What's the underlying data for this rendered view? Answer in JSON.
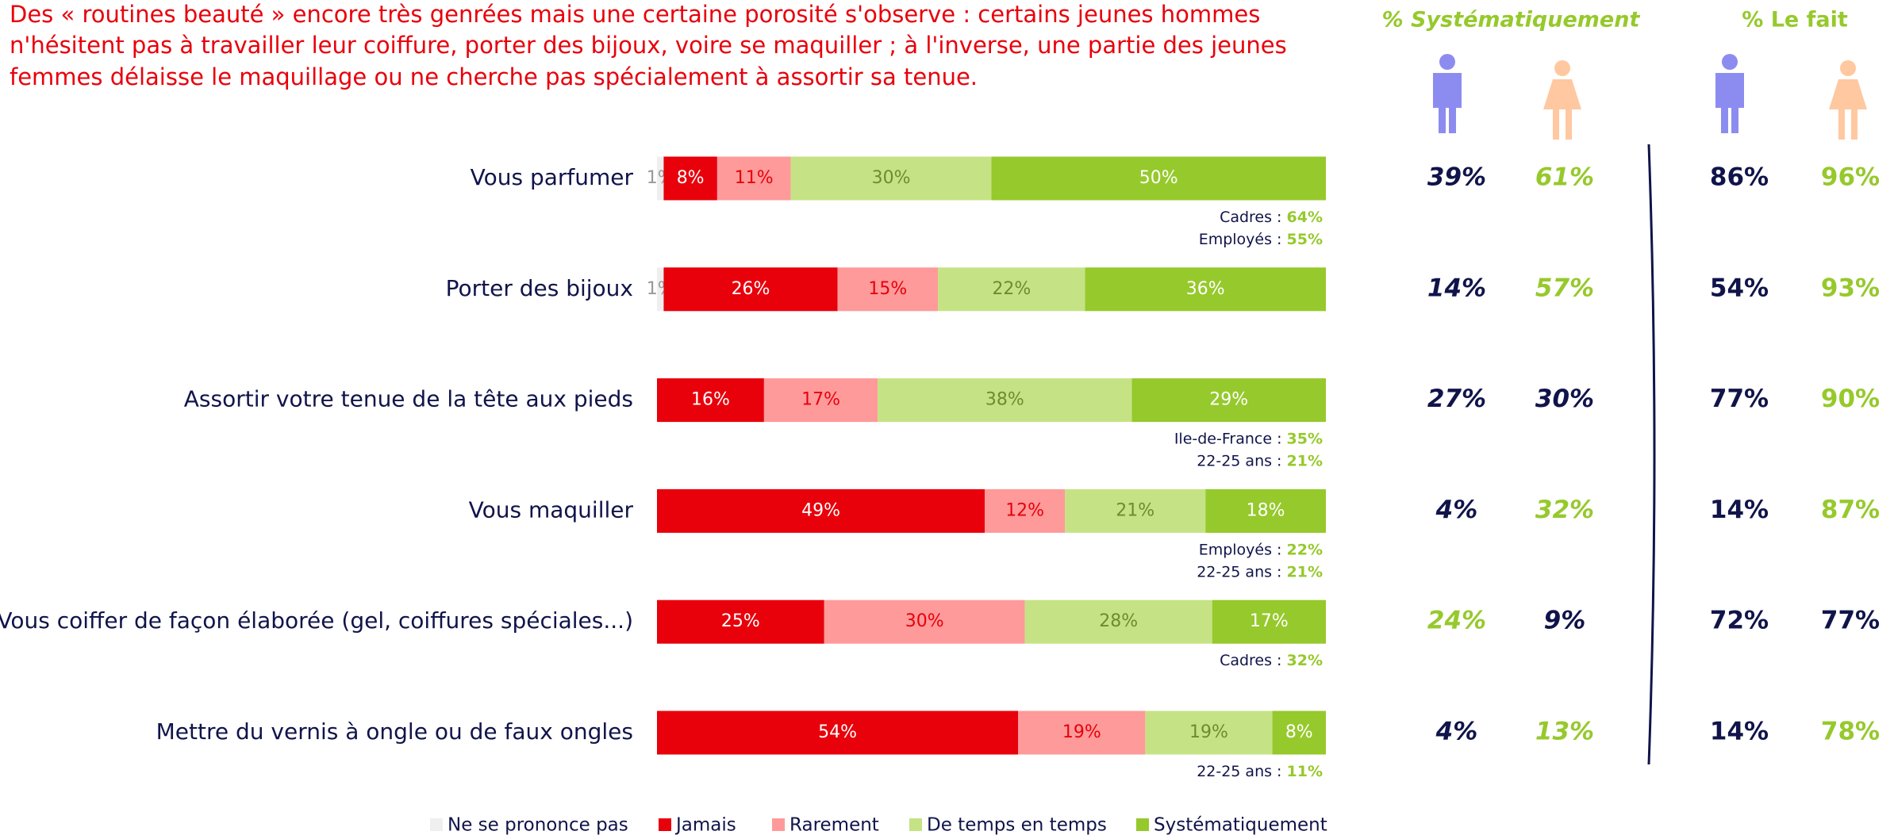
{
  "chart_data": {
    "type": "bar",
    "orientation": "horizontal",
    "stacked": true,
    "title_lines": [
      "Des « routines beauté » encore très genrées mais une certaine porosité s'observe : certains jeunes hommes",
      "n'hésitent pas à travailler leur coiffure, porter des bijoux, voire se maquiller ; à l'inverse, une partie des jeunes",
      "femmes délaisse le maquillage ou ne cherche pas spécialement à assortir sa tenue."
    ],
    "categories": [
      "Vous parfumer",
      "Porter des bijoux",
      "Assortir votre tenue de la tête aux pieds",
      "Vous maquiller",
      "Vous coiffer de façon élaborée (gel, coiffures spéciales...)",
      "Mettre du vernis à ongle ou de faux ongles"
    ],
    "series": [
      {
        "name": "Ne se prononce pas",
        "color": "#efefef",
        "label_color": "#999999",
        "values": [
          1,
          1,
          null,
          null,
          null,
          null
        ],
        "value_labels": [
          "1%",
          "1%",
          null,
          null,
          null,
          null
        ]
      },
      {
        "name": "Jamais",
        "color": "#e8000b",
        "label_color": "#ffffff",
        "values": [
          8,
          26,
          16,
          49,
          25,
          54
        ],
        "value_labels": [
          "8%",
          "26%",
          "16%",
          "49%",
          "25%",
          "54%"
        ]
      },
      {
        "name": "Rarement",
        "color": "#fe9a9a",
        "label_color": "#e8000b",
        "values": [
          11,
          15,
          17,
          12,
          30,
          19
        ],
        "value_labels": [
          "11%",
          "15%",
          "17%",
          "12%",
          "30%",
          "19%"
        ]
      },
      {
        "name": "De temps en temps",
        "color": "#c5e384",
        "label_color": "#6e8c2c",
        "values": [
          30,
          22,
          38,
          21,
          28,
          19
        ],
        "value_labels": [
          "30%",
          "22%",
          "38%",
          "21%",
          "28%",
          "19%"
        ]
      },
      {
        "name": "Systématiquement",
        "color": "#96c92c",
        "label_color": "#ffffff",
        "values": [
          50,
          36,
          29,
          18,
          17,
          8
        ],
        "value_labels": [
          "50%",
          "36%",
          "29%",
          "18%",
          "17%",
          "8%"
        ]
      }
    ],
    "notes": [
      [
        {
          "label": "Cadres :",
          "value": "64%"
        },
        {
          "label": "Employés :",
          "value": "55%"
        }
      ],
      [],
      [
        {
          "label": "Ile-de-France :",
          "value": "35%"
        },
        {
          "label": "22-25 ans :",
          "value": "21%"
        }
      ],
      [
        {
          "label": "Employés :",
          "value": "22%"
        },
        {
          "label": "22-25 ans :",
          "value": "21%"
        }
      ],
      [
        {
          "label": "Cadres :",
          "value": "32%"
        }
      ],
      [
        {
          "label": "22-25 ans :",
          "value": "11%"
        }
      ]
    ],
    "side_tables": [
      {
        "title": "% Systématiquement",
        "italic": true,
        "men": [
          {
            "value": 39,
            "label": "39%",
            "color": "#10144a"
          },
          {
            "value": 14,
            "label": "14%",
            "color": "#10144a"
          },
          {
            "value": 27,
            "label": "27%",
            "color": "#10144a"
          },
          {
            "value": 4,
            "label": "4%",
            "color": "#10144a"
          },
          {
            "value": 24,
            "label": "24%",
            "color": "#96c92c"
          },
          {
            "value": 4,
            "label": "4%",
            "color": "#10144a"
          }
        ],
        "women": [
          {
            "value": 61,
            "label": "61%",
            "color": "#96c92c"
          },
          {
            "value": 57,
            "label": "57%",
            "color": "#96c92c"
          },
          {
            "value": 30,
            "label": "30%",
            "color": "#10144a"
          },
          {
            "value": 32,
            "label": "32%",
            "color": "#96c92c"
          },
          {
            "value": 9,
            "label": "9%",
            "color": "#10144a"
          },
          {
            "value": 13,
            "label": "13%",
            "color": "#96c92c"
          }
        ]
      },
      {
        "title": "% Le fait",
        "italic": false,
        "men": [
          {
            "value": 86,
            "label": "86%",
            "color": "#10144a"
          },
          {
            "value": 54,
            "label": "54%",
            "color": "#10144a"
          },
          {
            "value": 77,
            "label": "77%",
            "color": "#10144a"
          },
          {
            "value": 14,
            "label": "14%",
            "color": "#10144a"
          },
          {
            "value": 72,
            "label": "72%",
            "color": "#10144a"
          },
          {
            "value": 14,
            "label": "14%",
            "color": "#10144a"
          }
        ],
        "women": [
          {
            "value": 96,
            "label": "96%",
            "color": "#96c92c"
          },
          {
            "value": 93,
            "label": "93%",
            "color": "#96c92c"
          },
          {
            "value": 90,
            "label": "90%",
            "color": "#96c92c"
          },
          {
            "value": 87,
            "label": "87%",
            "color": "#96c92c"
          },
          {
            "value": 77,
            "label": "77%",
            "color": "#10144a"
          },
          {
            "value": 78,
            "label": "78%",
            "color": "#96c92c"
          }
        ]
      }
    ],
    "note_value_color": "#96c92c",
    "men_icon_color": "#8c8cf0",
    "women_icon_color": "#ffc8a0"
  }
}
